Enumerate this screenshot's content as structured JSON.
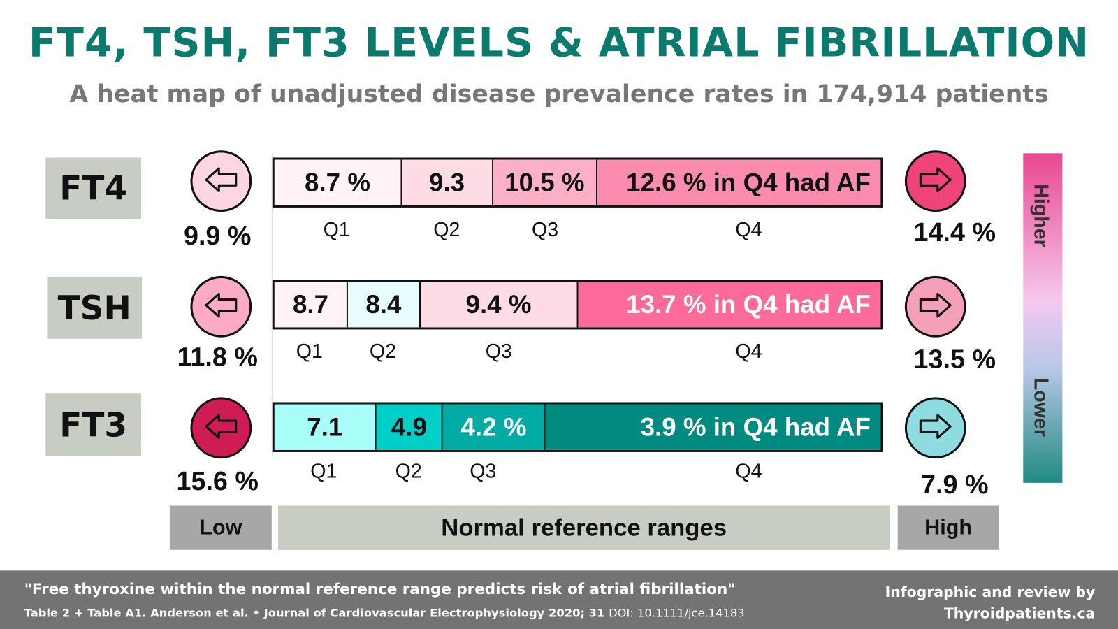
{
  "title": "FT4, TSH, FT3 LEVELS & ATRIAL FIBRILLATION",
  "subtitle": "A heat map of unadjusted disease prevalence rates in 174,914 patients",
  "rows": [
    {
      "label": "FT4",
      "low": {
        "value": "9.9 %",
        "color": "#fdd6e2"
      },
      "high": {
        "value": "14.4 %",
        "color": "#ee4477"
      },
      "segments": [
        {
          "text": "8.7 %",
          "q": "Q1",
          "color": "#fff3f7"
        },
        {
          "text": "9.3",
          "q": "Q2",
          "color": "#fddce6"
        },
        {
          "text": "10.5 %",
          "q": "Q3",
          "color": "#fdb0c8"
        },
        {
          "text": "12.6 % in Q4 had AF",
          "q": "Q4",
          "color": "#fc8bb0"
        }
      ]
    },
    {
      "label": "TSH",
      "low": {
        "value": "11.8 %",
        "color": "#fcabc4"
      },
      "high": {
        "value": "13.5 %",
        "color": "#f4a0b8"
      },
      "segments": [
        {
          "text": "8.7",
          "q": "Q1",
          "color": "#fff3f7"
        },
        {
          "text": "8.4",
          "q": "Q2",
          "color": "#e8fdfd"
        },
        {
          "text": "9.4 %",
          "q": "Q3",
          "color": "#fddce6"
        },
        {
          "text": "13.7 % in Q4 had AF",
          "q": "Q4",
          "color": "#fc6a9a"
        }
      ]
    },
    {
      "label": "FT3",
      "low": {
        "value": "15.6 %",
        "color": "#d01c55"
      },
      "high": {
        "value": "7.9 %",
        "color": "#8fdce0"
      },
      "segments": [
        {
          "text": "7.1",
          "q": "Q1",
          "color": "#a8fdf8"
        },
        {
          "text": "4.9",
          "q": "Q2",
          "color": "#00cfc8"
        },
        {
          "text": "4.2 %",
          "q": "Q3",
          "color": "#00aba4"
        },
        {
          "text": "3.9 % in Q4 had AF",
          "q": "Q4",
          "color": "#008a80"
        }
      ]
    }
  ],
  "legend": {
    "higher": "Higher",
    "lower": "Lower",
    "colors": [
      "#e8488f",
      "#f5c8f0",
      "#208a80"
    ]
  },
  "ranges": {
    "low": "Low",
    "normal": "Normal reference ranges",
    "high": "High"
  },
  "footer": {
    "quote": "\"Free thyroxine within the normal reference range predicts risk of atrial fibrillation\"",
    "citation": "Table 2 + Table A1. Anderson et al. • Journal of Cardiovascular Electrophysiology 2020; 31",
    "doi": "DOI: 10.1111/jce.14183",
    "credit1": "Infographic and review by",
    "credit2": "Thyroidpatients.ca"
  }
}
